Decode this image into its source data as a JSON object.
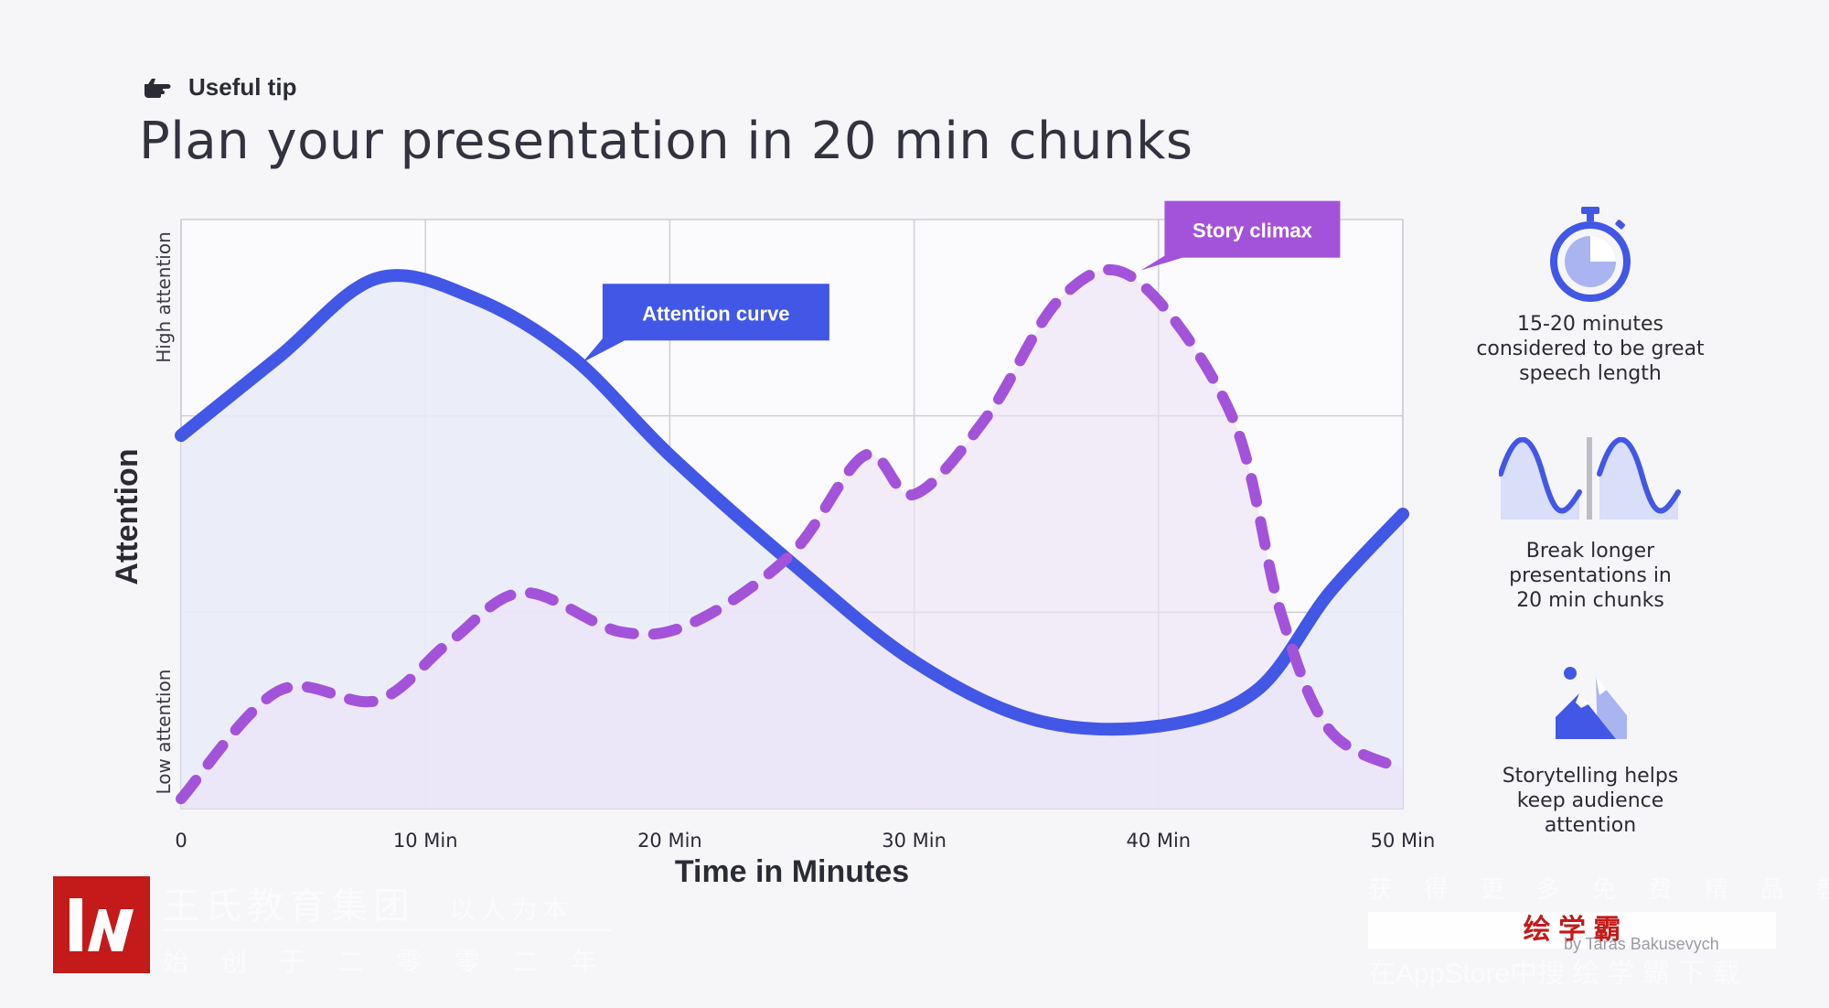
{
  "header": {
    "tip_label": "Useful tip",
    "tip_icon": "pointing-hand-icon",
    "title": "Plan your presentation in 20 min chunks"
  },
  "chart_data": {
    "type": "line",
    "title": "Plan your presentation in 20 min chunks",
    "xlabel": "Time in Minutes",
    "ylabel": "Attention",
    "y_range_labels": {
      "high": "High attention",
      "low": "Low attention"
    },
    "x_ticks": [
      {
        "value": 0,
        "label": "0"
      },
      {
        "value": 10,
        "label": "10 Min"
      },
      {
        "value": 20,
        "label": "20 Min"
      },
      {
        "value": 30,
        "label": "30 Min"
      },
      {
        "value": 40,
        "label": "40 Min"
      },
      {
        "value": 50,
        "label": "50 Min"
      }
    ],
    "xlim": [
      0,
      50
    ],
    "ylim": [
      0,
      3
    ],
    "grid": true,
    "series": [
      {
        "name": "Attention curve",
        "style": "solid",
        "color": "#4257e6",
        "points": [
          [
            0,
            1.9
          ],
          [
            4,
            2.3
          ],
          [
            8,
            2.7
          ],
          [
            12,
            2.6
          ],
          [
            16,
            2.3
          ],
          [
            20,
            1.8
          ],
          [
            25,
            1.25
          ],
          [
            30,
            0.75
          ],
          [
            35,
            0.45
          ],
          [
            40,
            0.42
          ],
          [
            44,
            0.6
          ],
          [
            47,
            1.1
          ],
          [
            50,
            1.5
          ]
        ]
      },
      {
        "name": "Story climax",
        "style": "dashed",
        "color": "#a353d9",
        "points": [
          [
            0,
            0.05
          ],
          [
            4,
            0.6
          ],
          [
            8,
            0.55
          ],
          [
            11,
            0.85
          ],
          [
            14,
            1.1
          ],
          [
            18,
            0.9
          ],
          [
            21,
            0.95
          ],
          [
            25,
            1.3
          ],
          [
            28,
            1.8
          ],
          [
            30,
            1.6
          ],
          [
            33,
            2.0
          ],
          [
            36,
            2.6
          ],
          [
            39,
            2.7
          ],
          [
            43,
            2.0
          ],
          [
            45,
            1.0
          ],
          [
            47,
            0.4
          ],
          [
            50,
            0.2
          ]
        ]
      }
    ],
    "annotations": [
      {
        "text": "Attention curve",
        "color": "#4257e6",
        "at_x": 16.5,
        "at_y": 2.3
      },
      {
        "text": "Story climax",
        "color": "#a353d9",
        "at_x": 39.5,
        "at_y": 2.75
      }
    ]
  },
  "sidebar": [
    {
      "icon": "stopwatch-icon",
      "lines": [
        "15-20 minutes",
        "considered to be great",
        "speech length"
      ]
    },
    {
      "icon": "split-waves-icon",
      "lines": [
        "Break longer",
        "presentations in",
        "20 min chunks"
      ]
    },
    {
      "icon": "mountain-climax-icon",
      "lines": [
        "Storytelling helps",
        "keep audience",
        "attention"
      ]
    }
  ],
  "watermark": {
    "logo_icon": "wangshi-logo-icon",
    "left_top": "王氏教育集团",
    "left_tag": "以人为本",
    "left_bottom": "始 创 于 二 零 零 二 年",
    "right_top": "获 得 更 多 免 费 精 品 教 程",
    "right_brand": "绘 学 霸",
    "right_bottom": "在AppStore中搜 绘 学 霸 下 载",
    "credit": "by Taras Bakusevych"
  },
  "colors": {
    "attention": "#4257e6",
    "climax": "#a353d9",
    "attention_fill": "#e9ecf8",
    "climax_fill": "#ede2f6",
    "icon_blue": "#4257e6",
    "icon_light": "#aab4f1",
    "logo_red": "#c41a1a"
  }
}
